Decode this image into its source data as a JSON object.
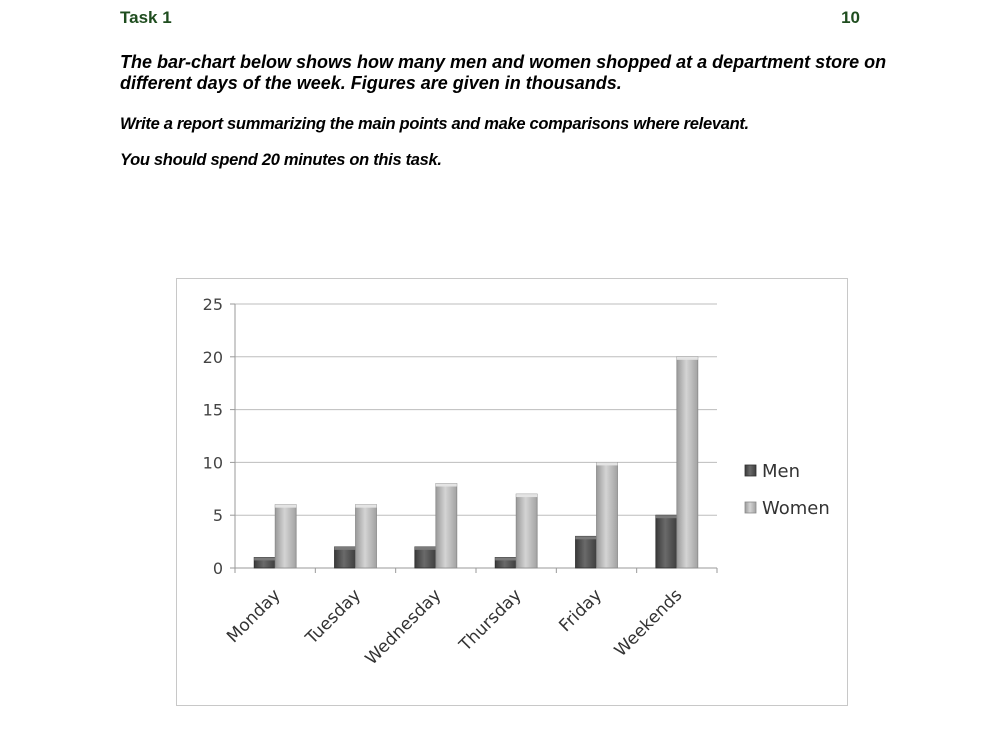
{
  "header": {
    "task_label": "Task 1",
    "task_number": "10"
  },
  "prompt": {
    "description": "The bar-chart below shows how many men and women shopped at a department store on different days of the week. Figures are given in thousands.",
    "instruction": "Write a report summarizing the main points and make comparisons where relevant.",
    "time_note": "You should spend 20 minutes on this task."
  },
  "chart_data": {
    "type": "bar",
    "title": "",
    "xlabel": "",
    "ylabel": "",
    "categories": [
      "Monday",
      "Tuesday",
      "Wednesday",
      "Thursday",
      "Friday",
      "Weekends"
    ],
    "series": [
      {
        "name": "Men",
        "values": [
          1,
          2,
          2,
          1,
          3,
          5
        ],
        "color": "#555555"
      },
      {
        "name": "Women",
        "values": [
          6,
          6,
          8,
          7,
          10,
          20
        ],
        "color": "#b8b8b8"
      }
    ],
    "ylim": [
      0,
      25
    ],
    "yticks": [
      "0",
      "5",
      "10",
      "15",
      "20",
      "25"
    ],
    "grid": true,
    "legend_position": "right"
  }
}
